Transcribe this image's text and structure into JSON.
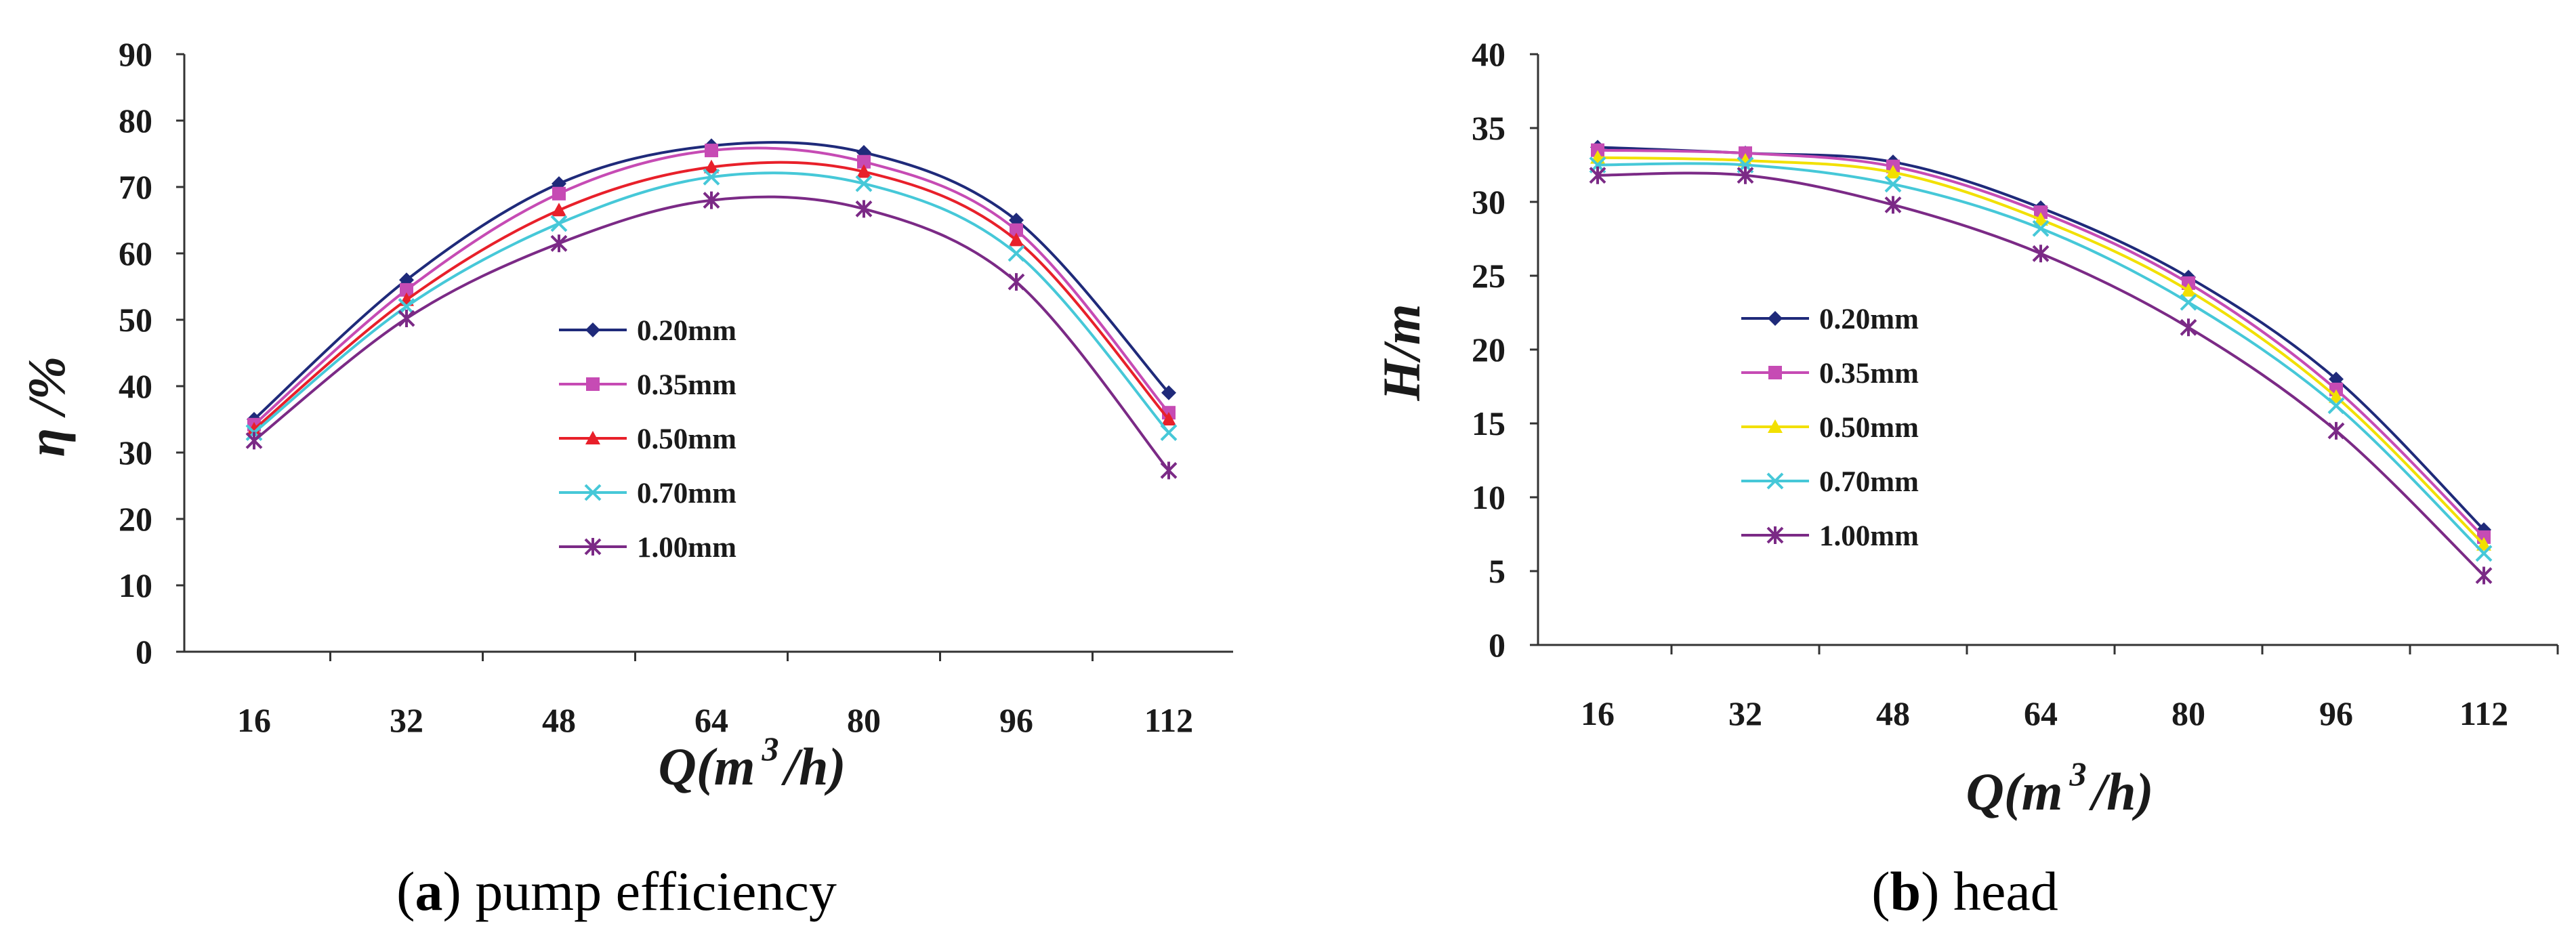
{
  "chart_data": [
    {
      "type": "line",
      "panel_label": "a",
      "caption": "pump efficiency",
      "xlabel": "Q(m",
      "xlabel_sup": "3",
      "xlabel_tail": "/h)",
      "ylabel": "η /%",
      "x": [
        16,
        32,
        48,
        64,
        80,
        96,
        112
      ],
      "ylim": [
        0,
        90
      ],
      "yticks": [
        0,
        10,
        20,
        30,
        40,
        50,
        60,
        70,
        80,
        90
      ],
      "legend_position": "center",
      "series": [
        {
          "name": "0.20mm",
          "color": "#1f2a7a",
          "marker": "diamond",
          "values": [
            35,
            56,
            70.5,
            76.2,
            75.2,
            65,
            39
          ]
        },
        {
          "name": "0.35mm",
          "color": "#c64bb4",
          "marker": "square",
          "values": [
            34.2,
            54.5,
            69,
            75.5,
            73.8,
            63.5,
            36
          ]
        },
        {
          "name": "0.50mm",
          "color": "#e8202a",
          "marker": "triangle",
          "values": [
            33.5,
            53,
            66.5,
            73,
            72.3,
            62,
            35
          ]
        },
        {
          "name": "0.70mm",
          "color": "#46c8d8",
          "marker": "x",
          "values": [
            33,
            52,
            64.5,
            71.5,
            70.5,
            60,
            33
          ]
        },
        {
          "name": "1.00mm",
          "color": "#7b2a86",
          "marker": "star",
          "values": [
            31.8,
            50.2,
            61.5,
            68,
            66.7,
            55.7,
            27.3
          ]
        }
      ]
    },
    {
      "type": "line",
      "panel_label": "b",
      "caption": "head",
      "xlabel": "Q(m",
      "xlabel_sup": "3",
      "xlabel_tail": "/h)",
      "ylabel": "H/m",
      "x": [
        16,
        32,
        48,
        64,
        80,
        96,
        112
      ],
      "ylim": [
        0,
        40
      ],
      "yticks": [
        0,
        5,
        10,
        15,
        20,
        25,
        30,
        35,
        40
      ],
      "legend_position": "center-left",
      "series": [
        {
          "name": "0.20mm",
          "color": "#1f2a7a",
          "marker": "diamond",
          "values": [
            33.7,
            33.3,
            32.7,
            29.6,
            24.9,
            18,
            7.8
          ]
        },
        {
          "name": "0.35mm",
          "color": "#c64bb4",
          "marker": "square",
          "values": [
            33.5,
            33.3,
            32.4,
            29.3,
            24.5,
            17.3,
            7.3
          ]
        },
        {
          "name": "0.50mm",
          "color": "#f2e000",
          "marker": "triangle",
          "values": [
            33,
            32.8,
            32,
            28.8,
            24,
            16.8,
            6.8
          ]
        },
        {
          "name": "0.70mm",
          "color": "#46c8d8",
          "marker": "x",
          "values": [
            32.5,
            32.5,
            31.2,
            28.2,
            23.2,
            16.2,
            6.2
          ]
        },
        {
          "name": "1.00mm",
          "color": "#7b2a86",
          "marker": "star",
          "values": [
            31.8,
            31.8,
            29.8,
            26.5,
            21.5,
            14.5,
            4.7
          ]
        }
      ]
    }
  ]
}
